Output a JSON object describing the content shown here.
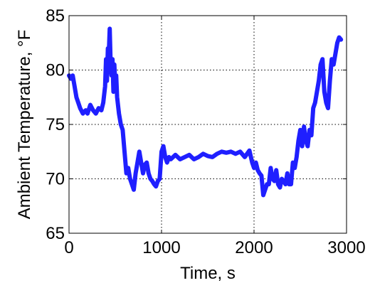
{
  "chart_data": {
    "type": "line",
    "title": "",
    "xlabel": "Time, s",
    "ylabel": "Ambient Temperature, °F",
    "xlim": [
      0,
      3000
    ],
    "ylim": [
      65,
      85
    ],
    "x_ticks": [
      "0",
      "1000",
      "2000",
      "3000"
    ],
    "y_ticks": [
      "65",
      "70",
      "75",
      "80",
      "85"
    ],
    "grid": true,
    "grid_style": "dotted",
    "line_color": "#1f1fff",
    "series": [
      {
        "x": [
          0,
          20,
          40,
          60,
          80,
          100,
          120,
          150,
          180,
          200,
          230,
          260,
          290,
          320,
          350,
          370,
          390,
          400,
          410,
          420,
          430,
          440,
          450,
          460,
          470,
          480,
          490,
          500,
          510,
          520,
          540,
          560,
          580,
          600,
          620,
          640,
          660,
          680,
          700,
          720,
          740,
          760,
          780,
          800,
          820,
          840,
          860,
          880,
          900,
          920,
          940,
          960,
          980,
          1000,
          1020,
          1040,
          1060,
          1080,
          1100,
          1150,
          1200,
          1250,
          1300,
          1350,
          1400,
          1450,
          1500,
          1550,
          1600,
          1650,
          1700,
          1750,
          1800,
          1850,
          1900,
          1950,
          1980,
          2000,
          2020,
          2040,
          2060,
          2080,
          2100,
          2120,
          2140,
          2160,
          2180,
          2200,
          2220,
          2240,
          2260,
          2280,
          2300,
          2320,
          2340,
          2360,
          2380,
          2400,
          2420,
          2440,
          2460,
          2480,
          2500,
          2520,
          2540,
          2560,
          2580,
          2600,
          2620,
          2640,
          2660,
          2680,
          2700,
          2720,
          2740,
          2760,
          2780,
          2800,
          2820,
          2840,
          2860,
          2880,
          2900,
          2920,
          2940
        ],
        "y": [
          79.5,
          79.2,
          79.5,
          78.5,
          77.5,
          77,
          76.5,
          76,
          76.3,
          76,
          76.8,
          76.3,
          76,
          76.5,
          76.3,
          77,
          78.5,
          81,
          79,
          82,
          81.5,
          83.8,
          80.5,
          79.5,
          81,
          78,
          80.5,
          78.5,
          79.5,
          77.5,
          76,
          75,
          74.5,
          72.5,
          70.5,
          71,
          70,
          69.5,
          69,
          70.5,
          71.5,
          72.5,
          71.5,
          70.5,
          71.3,
          71.5,
          70.5,
          70,
          69.8,
          69.5,
          69.3,
          69.8,
          70,
          72.5,
          73,
          72,
          71.5,
          72,
          71.8,
          72.2,
          71.8,
          72,
          72.2,
          71.8,
          72,
          72.3,
          72.1,
          72,
          72.3,
          72.5,
          72.4,
          72.5,
          72.3,
          72.5,
          72,
          72.6,
          71.5,
          71,
          71.5,
          70.8,
          70.5,
          70.3,
          68.5,
          69,
          69.5,
          69.5,
          71,
          70,
          69.8,
          70.8,
          69.5,
          69.2,
          70,
          69.8,
          69.5,
          70.5,
          69.5,
          69.5,
          71.5,
          71,
          72,
          73.5,
          74.5,
          73,
          74.8,
          73.5,
          73,
          74.5,
          74,
          76.5,
          77,
          78,
          79,
          80.5,
          81,
          78,
          77,
          76.5,
          79,
          81,
          80.5,
          81.5,
          82.5,
          83,
          82.8
        ]
      }
    ]
  }
}
